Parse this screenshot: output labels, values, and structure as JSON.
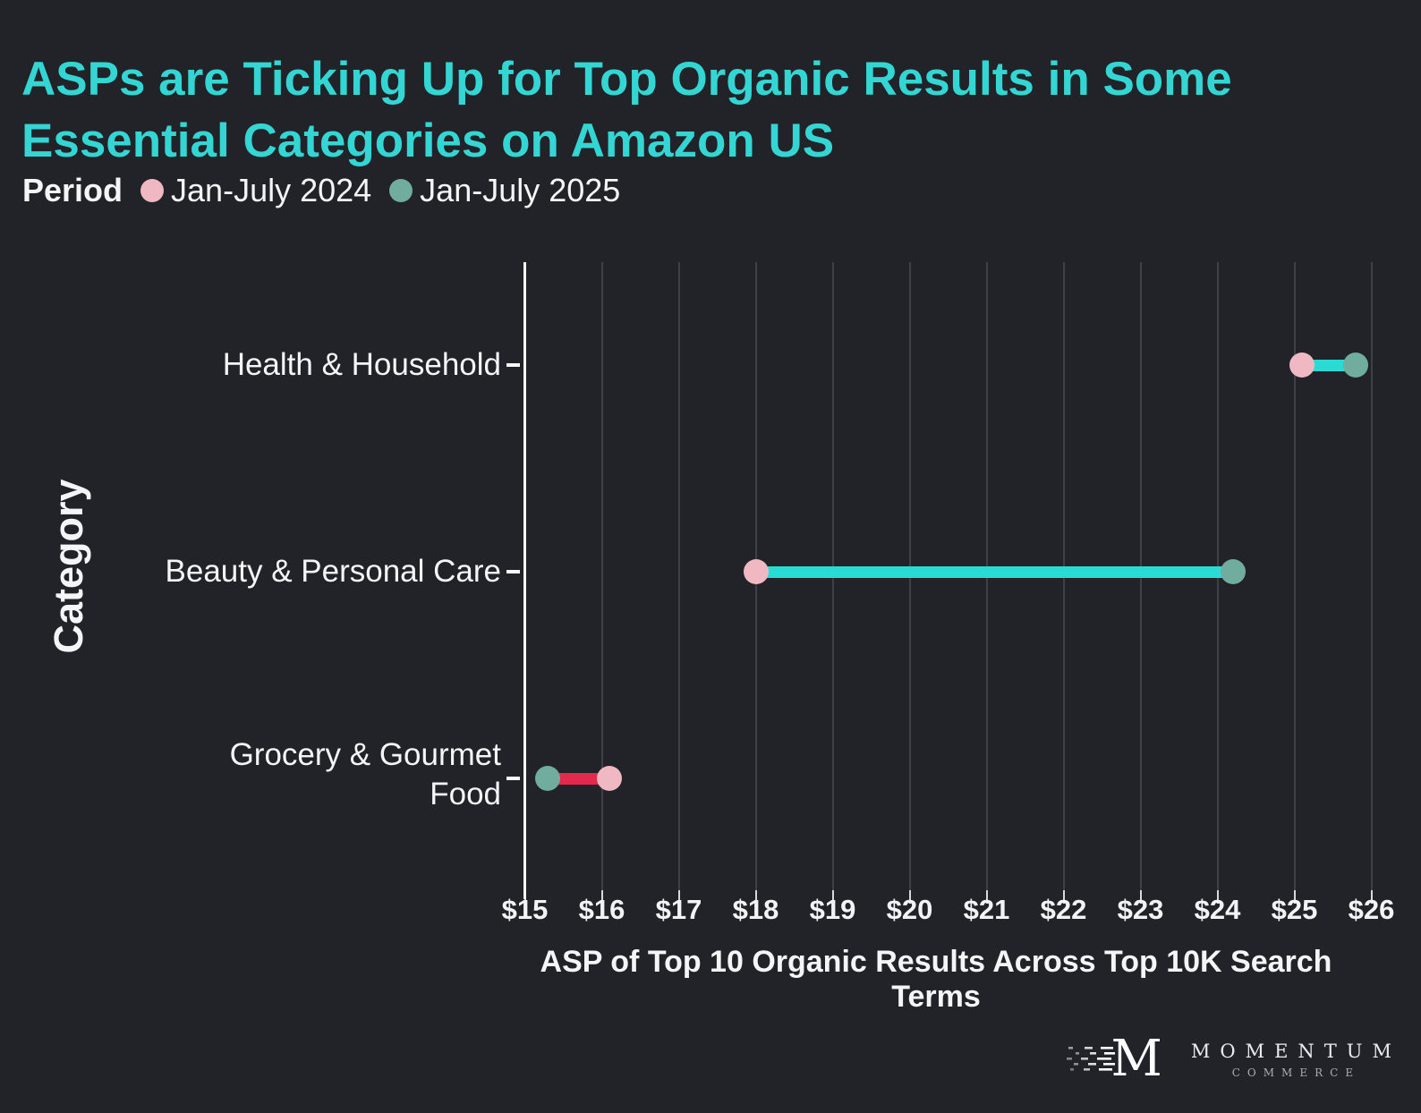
{
  "page": {
    "background": "#212329"
  },
  "title": {
    "text": "ASPs are Ticking Up for Top Organic Results in Some Essential Categories on Amazon US",
    "color": "#33d6d3"
  },
  "legend": {
    "label": "Period",
    "items": [
      {
        "name": "Jan-July 2024",
        "color": "#efb8c3"
      },
      {
        "name": "Jan-July 2025",
        "color": "#70ad9f"
      }
    ]
  },
  "chart_data": {
    "type": "dumbbell",
    "orientation": "horizontal",
    "categories": [
      "Health & Household",
      "Beauty & Personal Care",
      "Grocery & Gourmet Food"
    ],
    "series": [
      {
        "name": "Jan-July 2024",
        "color": "#efb8c3",
        "values": [
          25.1,
          18.0,
          16.1
        ]
      },
      {
        "name": "Jan-July 2025",
        "color": "#70ad9f",
        "values": [
          25.8,
          24.2,
          15.3
        ]
      }
    ],
    "connector_colors": {
      "increase": "#2adbd4",
      "decrease": "#e32a4c"
    },
    "xlabel": "ASP of Top 10 Organic Results Across Top 10K Search Terms",
    "ylabel": "Category",
    "xlim": [
      15,
      26
    ],
    "xtick_values": [
      15,
      16,
      17,
      18,
      19,
      20,
      21,
      22,
      23,
      24,
      25,
      26
    ],
    "xtick_labels": [
      "$15",
      "$16",
      "$17",
      "$18",
      "$19",
      "$20",
      "$21",
      "$22",
      "$23",
      "$24",
      "$25",
      "$26"
    ],
    "grid": "vertical-only",
    "legend_position": "top-left",
    "background": "#212329"
  },
  "logo": {
    "monogram": "M",
    "name": "MOMENTUM",
    "sub": "COMMERCE"
  }
}
